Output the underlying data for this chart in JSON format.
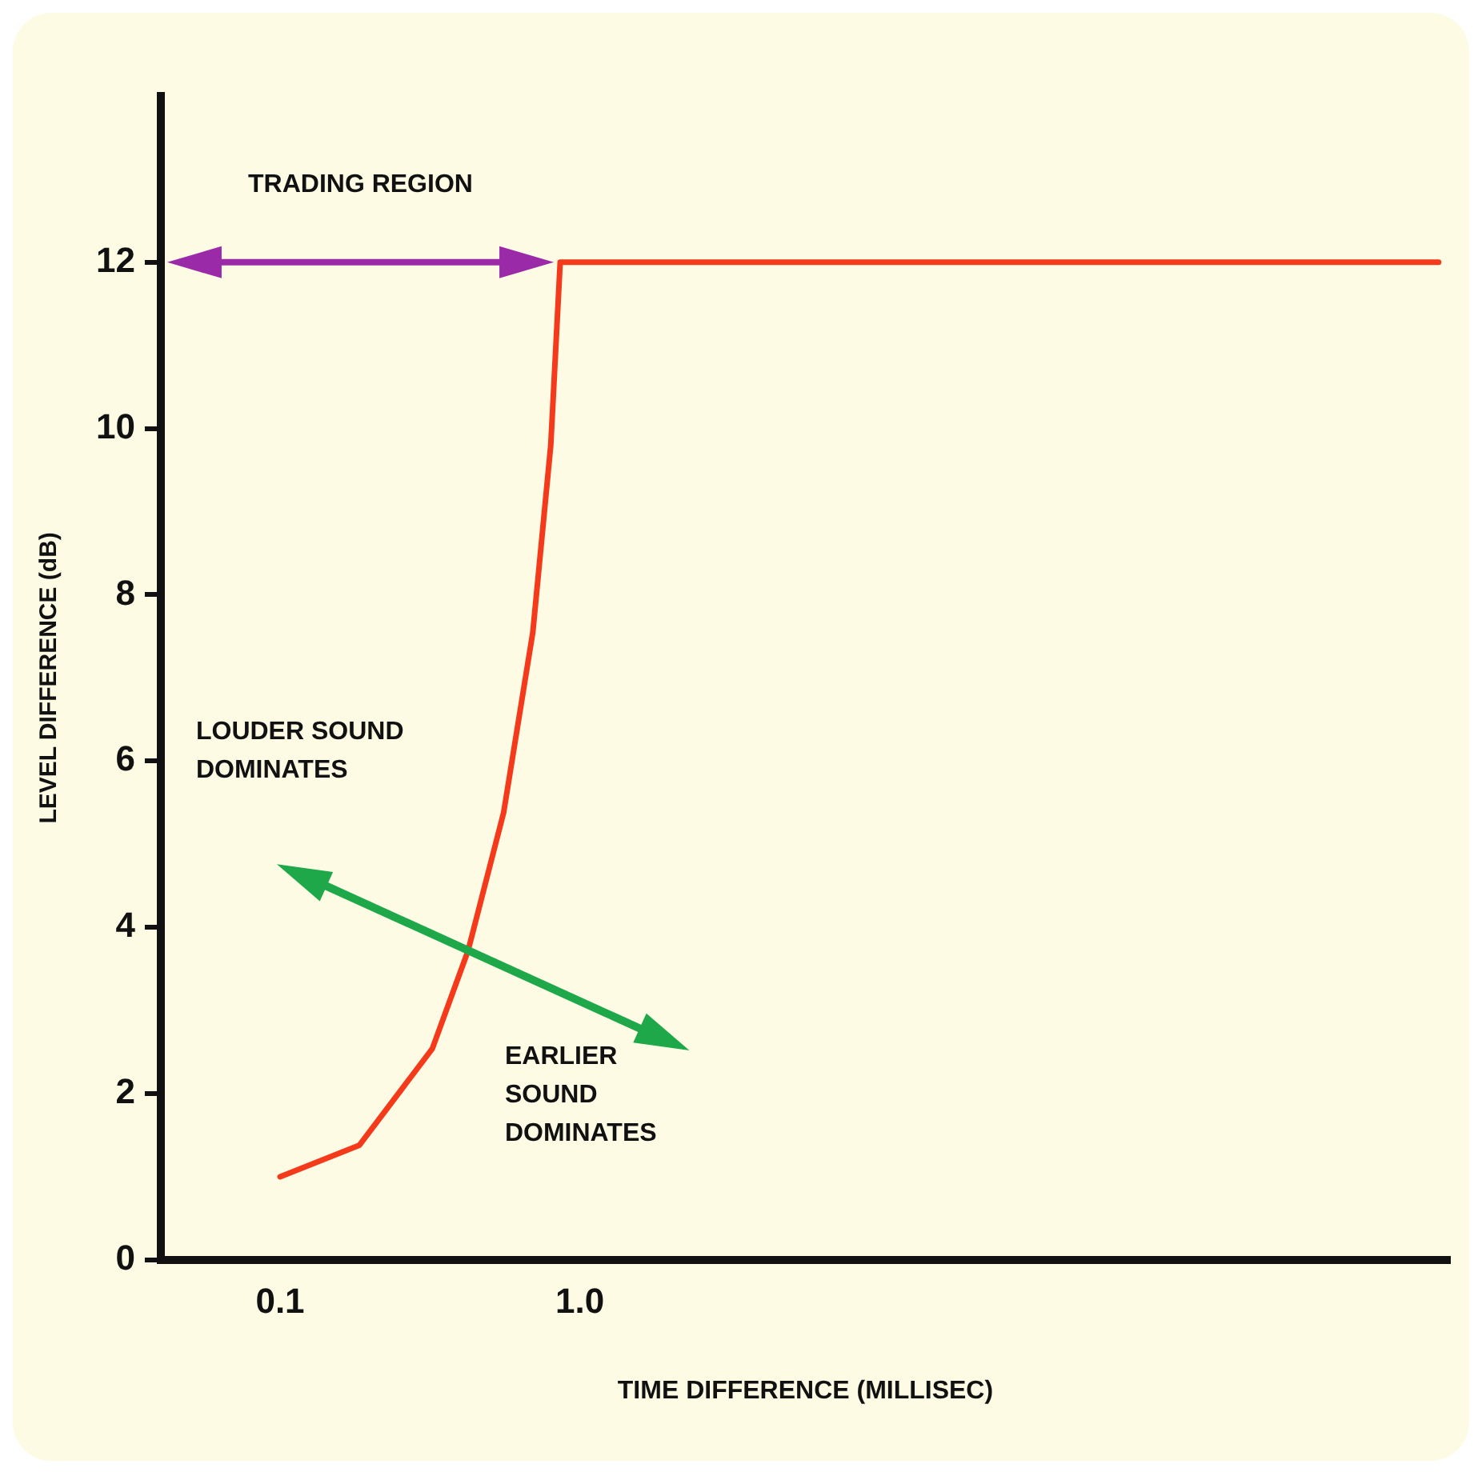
{
  "chart_data": {
    "type": "line",
    "xlabel": "TIME DIFFERENCE (MILLISEC)",
    "ylabel": "LEVEL DIFFERENCE (dB)",
    "log": "x",
    "xlim": [
      0.04,
      800
    ],
    "xticks": [
      0.1,
      {
        "value": 1,
        "label": "1.0"
      }
    ],
    "ylim": [
      0,
      14
    ],
    "yticks": [
      0,
      2,
      4,
      6,
      8,
      10,
      12
    ],
    "grid": false,
    "legend": false,
    "marker": "none",
    "line_style": "solid",
    "annotations": [
      "TRADING REGION",
      "LOUDER SOUND DOMINATES",
      "EARLIER SOUND DOMINATES"
    ],
    "series": [
      {
        "color": "#f53a1c",
        "x": [
          0.1,
          0.184,
          0.322,
          0.424,
          0.557,
          0.697,
          0.8,
          0.86,
          733
        ],
        "values": [
          1,
          1.38,
          2.54,
          3.72,
          5.38,
          7.55,
          9.8,
          12,
          12
        ]
      }
    ]
  }
}
